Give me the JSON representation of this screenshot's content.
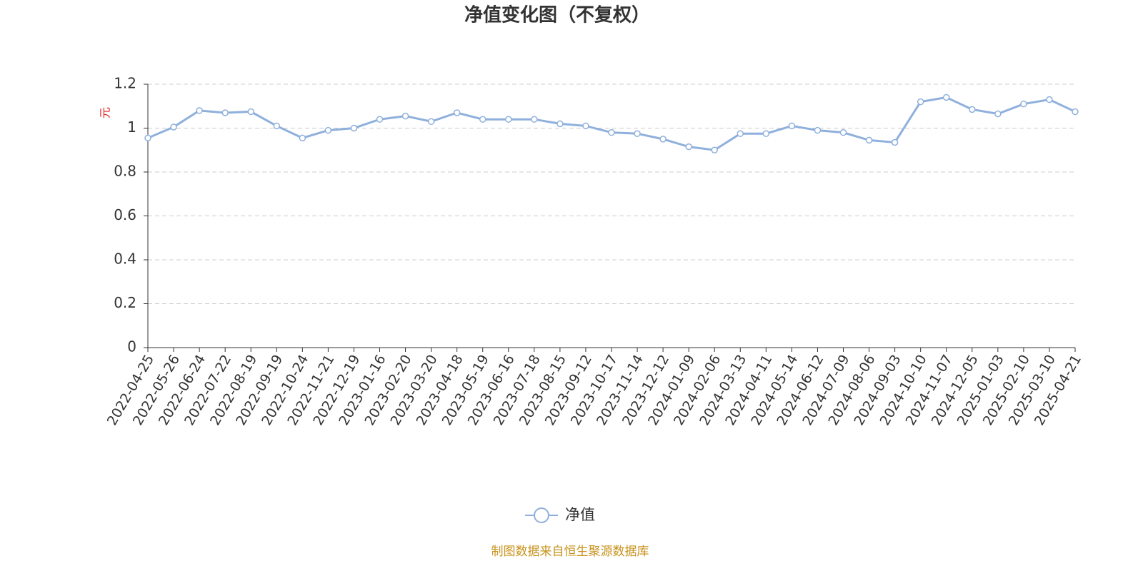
{
  "chart_data": {
    "type": "line",
    "title": "净值变化图（不复权）",
    "y_label": "元",
    "x": [
      "2022-04-25",
      "2022-05-26",
      "2022-06-24",
      "2022-07-22",
      "2022-08-19",
      "2022-09-19",
      "2022-10-24",
      "2022-11-21",
      "2022-12-19",
      "2023-01-16",
      "2023-02-20",
      "2023-03-20",
      "2023-04-18",
      "2023-05-19",
      "2023-06-16",
      "2023-07-18",
      "2023-08-15",
      "2023-09-12",
      "2023-10-17",
      "2023-11-14",
      "2023-12-12",
      "2024-01-09",
      "2024-02-06",
      "2024-03-13",
      "2024-04-11",
      "2024-05-14",
      "2024-06-12",
      "2024-07-09",
      "2024-08-06",
      "2024-09-03",
      "2024-10-10",
      "2024-11-07",
      "2024-12-05",
      "2025-01-03",
      "2025-02-10",
      "2025-03-10",
      "2025-04-21"
    ],
    "series": [
      {
        "name": "净值",
        "color": "#8fb0dc",
        "values": [
          0.955,
          1.005,
          1.08,
          1.07,
          1.075,
          1.01,
          0.955,
          0.99,
          1.0,
          1.04,
          1.055,
          1.03,
          1.07,
          1.04,
          1.04,
          1.04,
          1.02,
          1.01,
          0.98,
          0.975,
          0.95,
          0.915,
          0.9,
          0.975,
          0.975,
          1.01,
          0.99,
          0.98,
          0.945,
          0.935,
          1.12,
          1.14,
          1.085,
          1.065,
          1.11,
          1.13,
          1.075
        ]
      }
    ],
    "ylim": [
      0,
      1.2
    ],
    "yticks": [
      0,
      0.2,
      0.4,
      0.6,
      0.8,
      1,
      1.2
    ],
    "grid": true,
    "legend": "bottom",
    "source": "制图数据来自恒生聚源数据库"
  }
}
